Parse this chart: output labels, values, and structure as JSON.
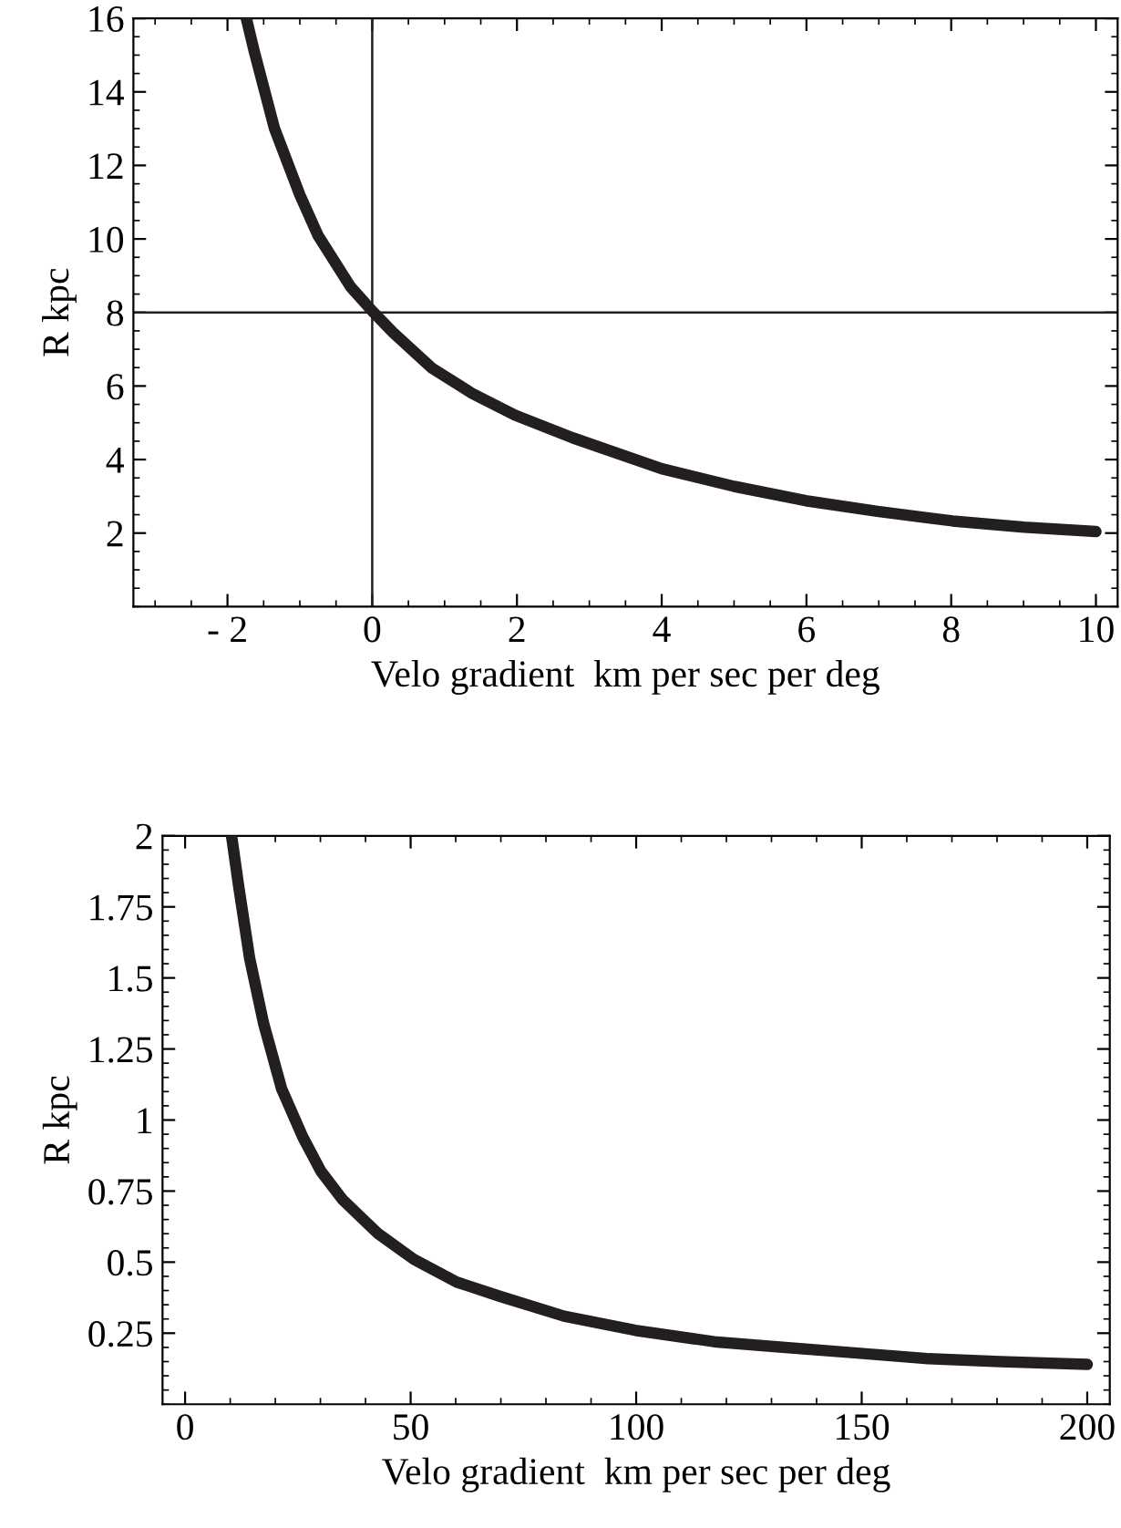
{
  "chart_data": [
    {
      "type": "line",
      "xlabel": "Velo gradient  km per sec per deg",
      "ylabel": "R kpc",
      "xlim": [
        -3.3,
        10.3
      ],
      "ylim": [
        0,
        16
      ],
      "xticks": [
        {
          "value": -2,
          "label": "- 2"
        },
        0,
        2,
        4,
        6,
        8,
        10
      ],
      "yticks": [
        2,
        4,
        6,
        8,
        10,
        12,
        14,
        16
      ],
      "grid": false,
      "marker": "none",
      "line_style": "solid",
      "series": [
        {
          "color": "#231f20",
          "x": [
            -1.74,
            -1.63,
            -1.35,
            -1.0,
            -0.75,
            -0.3,
            0,
            0.29,
            0.83,
            1.38,
            1.97,
            2.77,
            4.0,
            5.0,
            5.99,
            6.98,
            8.02,
            9.01,
            10
          ],
          "values": [
            16.0,
            15.1,
            13.0,
            11.2,
            10.1,
            8.7,
            8.04,
            7.45,
            6.48,
            5.8,
            5.21,
            4.59,
            3.75,
            3.27,
            2.88,
            2.59,
            2.33,
            2.16,
            2.04
          ]
        }
      ],
      "ref_lines": [
        {
          "axis": "x",
          "value": 0,
          "color": "#231f20"
        },
        {
          "axis": "y",
          "value": 8,
          "color": "#231f20"
        }
      ]
    },
    {
      "type": "line",
      "xlabel": "Velo gradient  km per sec per deg",
      "ylabel": "R kpc",
      "xlim": [
        -5,
        205
      ],
      "ylim": [
        0,
        2
      ],
      "xticks": [
        0,
        50,
        100,
        150,
        200
      ],
      "yticks": [
        0.25,
        0.5,
        0.75,
        1,
        1.25,
        1.5,
        1.75,
        2
      ],
      "grid": false,
      "marker": "none",
      "line_style": "solid",
      "series": [
        {
          "color": "#231f20",
          "x": [
            10.3,
            11.9,
            14.3,
            17.4,
            21.4,
            26.1,
            30.1,
            34.9,
            42.8,
            50.7,
            60.2,
            69.7,
            84,
            99.8,
            117.3,
            133.1,
            149,
            164.8,
            180.7,
            200
          ],
          "values": [
            2.0,
            1.82,
            1.57,
            1.34,
            1.11,
            0.94,
            0.82,
            0.72,
            0.6,
            0.51,
            0.43,
            0.38,
            0.31,
            0.26,
            0.22,
            0.2,
            0.18,
            0.16,
            0.15,
            0.14
          ]
        }
      ]
    }
  ]
}
